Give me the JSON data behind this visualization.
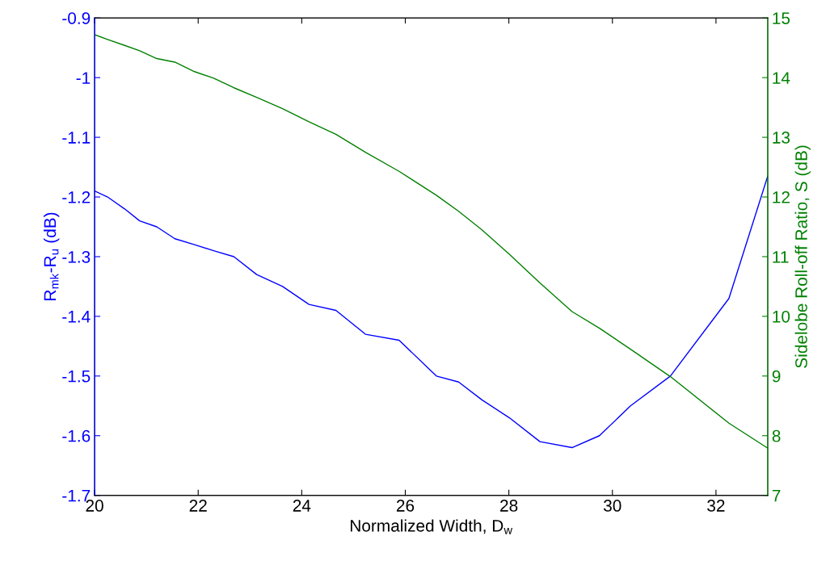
{
  "chart_data": {
    "type": "line",
    "xlabel": "Normalized Width, D$_{w}$",
    "ylabel": "R$_{mk}$-R$_{u}$ (dB)",
    "y2label": "Sidelobe Roll-off Ratio, S (dB)",
    "x": [
      20,
      20.25,
      20.58,
      20.87,
      21.2,
      21.55,
      21.93,
      22.3,
      22.69,
      23.13,
      23.63,
      24.14,
      24.66,
      25.23,
      25.88,
      26.6,
      27.03,
      27.48,
      28.01,
      28.6,
      29.22,
      29.75,
      30.35,
      31.12,
      32.25,
      33
    ],
    "series": [
      {
        "color": "#0000ff",
        "values": [
          -1.19,
          -1.2,
          -1.22,
          -1.24,
          -1.25,
          -1.27,
          -1.28,
          -1.29,
          -1.3,
          -1.33,
          -1.35,
          -1.38,
          -1.39,
          -1.43,
          -1.44,
          -1.5,
          -1.51,
          -1.54,
          -1.57,
          -1.61,
          -1.62,
          -1.6,
          -1.55,
          -1.5,
          -1.37,
          -1.165
        ]
      },
      {
        "color": "#008000",
        "axis": "y2",
        "values": [
          14.72,
          14.64,
          14.54,
          14.45,
          14.32,
          14.26,
          14.1,
          13.99,
          13.83,
          13.67,
          13.48,
          13.26,
          13.05,
          12.75,
          12.43,
          12.03,
          11.76,
          11.45,
          11.04,
          10.56,
          10.08,
          9.8,
          9.45,
          8.99,
          8.21,
          7.79
        ]
      }
    ],
    "xlim": [
      20,
      33
    ],
    "xticks": [
      20,
      22,
      24,
      26,
      28,
      30,
      32
    ],
    "ylim": [
      -1.7,
      -0.9
    ],
    "yticks": [
      -1.7,
      -1.6,
      -1.5,
      -1.4,
      -1.3,
      -1.2,
      -1.1,
      -1,
      -0.9
    ],
    "y2lim": [
      7,
      15
    ],
    "y2ticks": [
      7,
      8,
      9,
      10,
      11,
      12,
      13,
      14,
      15
    ],
    "grid": false,
    "legend": false
  }
}
